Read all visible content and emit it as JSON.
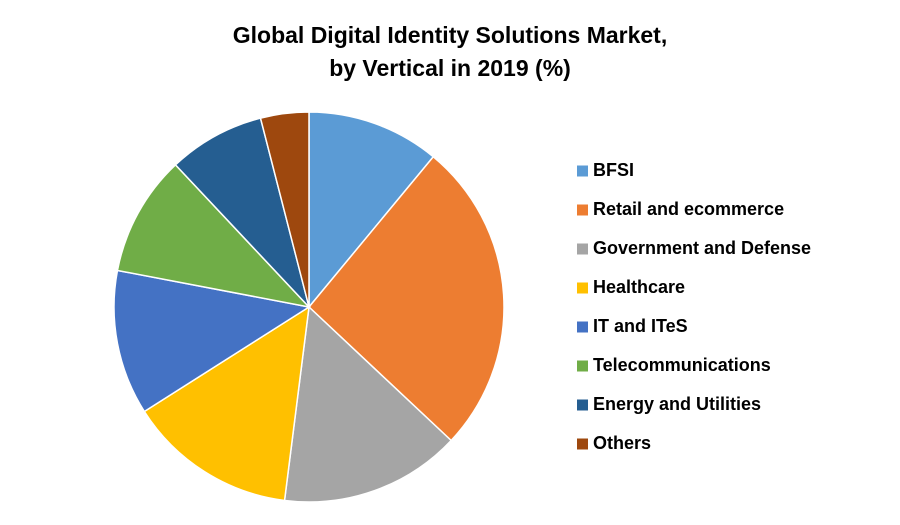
{
  "chart_data": {
    "type": "pie",
    "title": [
      "Global Digital Identity Solutions Market,",
      "by Vertical in 2019 (%)"
    ],
    "categories": [
      "BFSI",
      "Retail and ecommerce",
      "Government and Defense",
      "Healthcare",
      "IT and ITeS",
      "Telecommunications",
      "Energy and Utilities",
      "Others"
    ],
    "values": [
      11,
      26,
      15,
      14,
      12,
      10,
      8,
      4
    ],
    "colors": [
      "#5b9bd5",
      "#ed7d31",
      "#a5a5a5",
      "#ffc000",
      "#4472c4",
      "#70ad47",
      "#255e91",
      "#9e480e"
    ],
    "legend": "right"
  }
}
